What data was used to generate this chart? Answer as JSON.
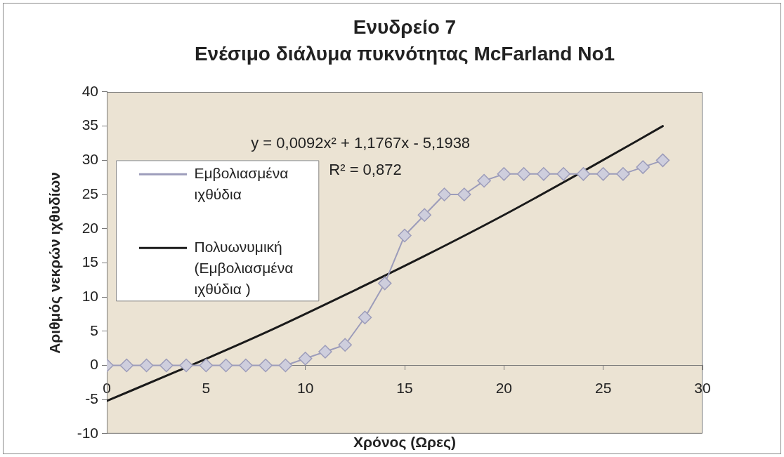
{
  "chart_data": {
    "type": "line",
    "title": "Ενυδρείο 7",
    "subtitle": "Ενέσιμο διάλυμα πυκνότητας McFarland No1",
    "xlabel": "Χρόνος (Ωρες)",
    "ylabel": "Αριθμός νεκρών ιχθυδίων",
    "xlim": [
      0,
      30
    ],
    "xticks": [
      0,
      5,
      10,
      15,
      20,
      25,
      30
    ],
    "ylim": [
      -10,
      40
    ],
    "yticks": [
      -10,
      -5,
      0,
      5,
      10,
      15,
      20,
      25,
      30,
      35,
      40
    ],
    "legend": "left",
    "annotations": [
      "y = 0,0092x² + 1,1767x - 5,1938",
      "R² = 0,872"
    ],
    "series": [
      {
        "name": "Εμβολιασμένα ιχθύδια",
        "color": "#9c9cba",
        "marker": "diamond",
        "x": [
          0,
          1,
          2,
          3,
          4,
          5,
          6,
          7,
          8,
          9,
          10,
          11,
          12,
          13,
          14,
          15,
          16,
          17,
          18,
          19,
          20,
          21,
          22,
          23,
          24,
          25,
          26,
          27,
          28
        ],
        "values": [
          0,
          0,
          0,
          0,
          0,
          0,
          0,
          0,
          0,
          0,
          1,
          2,
          3,
          7,
          12,
          19,
          22,
          25,
          25,
          27,
          28,
          28,
          28,
          28,
          28,
          28,
          28,
          29,
          30
        ]
      },
      {
        "name": "Πολυωνυμική (Εμβολιασμένα ιχθύδια )",
        "type": "line",
        "color": "#1a1a1a",
        "marker": "none",
        "x": [
          0,
          4,
          8,
          12,
          16,
          20,
          24,
          28
        ],
        "values": [
          -5.2,
          -0.3,
          4.8,
          10.3,
          16.0,
          22.0,
          28.4,
          35.0
        ]
      }
    ]
  }
}
